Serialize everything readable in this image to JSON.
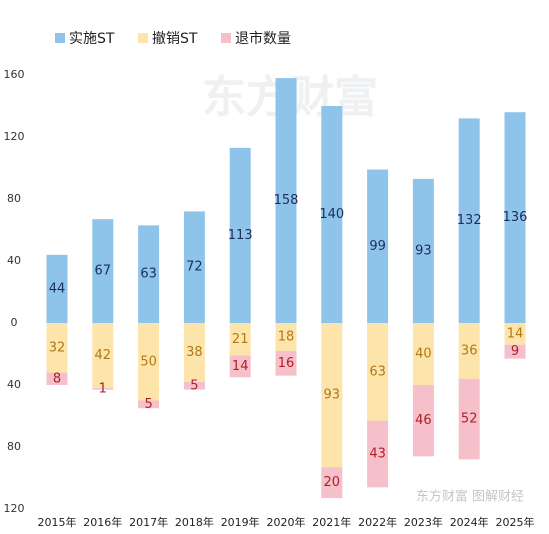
{
  "chart_data": {
    "type": "bar",
    "categories": [
      "2015年",
      "2016年",
      "2017年",
      "2018年",
      "2019年",
      "2020年",
      "2021年",
      "2022年",
      "2023年",
      "2024年",
      "2025年"
    ],
    "series": [
      {
        "name": "实施ST",
        "color": "#8fc4ea",
        "label_color": "#1f2d5a",
        "values": [
          44,
          67,
          63,
          72,
          113,
          158,
          140,
          99,
          93,
          132,
          136
        ]
      },
      {
        "name": "撤销ST",
        "color": "#fce4aa",
        "label_color": "#b07a1a",
        "values": [
          -32,
          -42,
          -50,
          -38,
          -21,
          -18,
          -93,
          -63,
          -40,
          -36,
          -14
        ],
        "value_labels": [
          "32",
          "42",
          "50",
          "38",
          "21",
          "18",
          "93",
          "63",
          "40",
          "36",
          "14"
        ]
      },
      {
        "name": "退市数量",
        "color": "#f5c0c9",
        "label_color": "#b0202a",
        "values": [
          -8,
          -1,
          -5,
          -5,
          -14,
          -16,
          -20,
          -43,
          -46,
          -52,
          -9
        ],
        "value_labels": [
          "8",
          "1",
          "5",
          "5",
          "14",
          "16",
          "20",
          "43",
          "46",
          "52",
          "9"
        ]
      }
    ],
    "ylim": [
      -120,
      160
    ],
    "yticks": [
      {
        "value": -120,
        "label": "120"
      },
      {
        "value": -80,
        "label": "80"
      },
      {
        "value": -40,
        "label": "40"
      },
      0,
      40,
      80,
      120,
      160
    ],
    "grid": false,
    "watermark": "东方财富",
    "credit": "东方财富 图解财经"
  }
}
